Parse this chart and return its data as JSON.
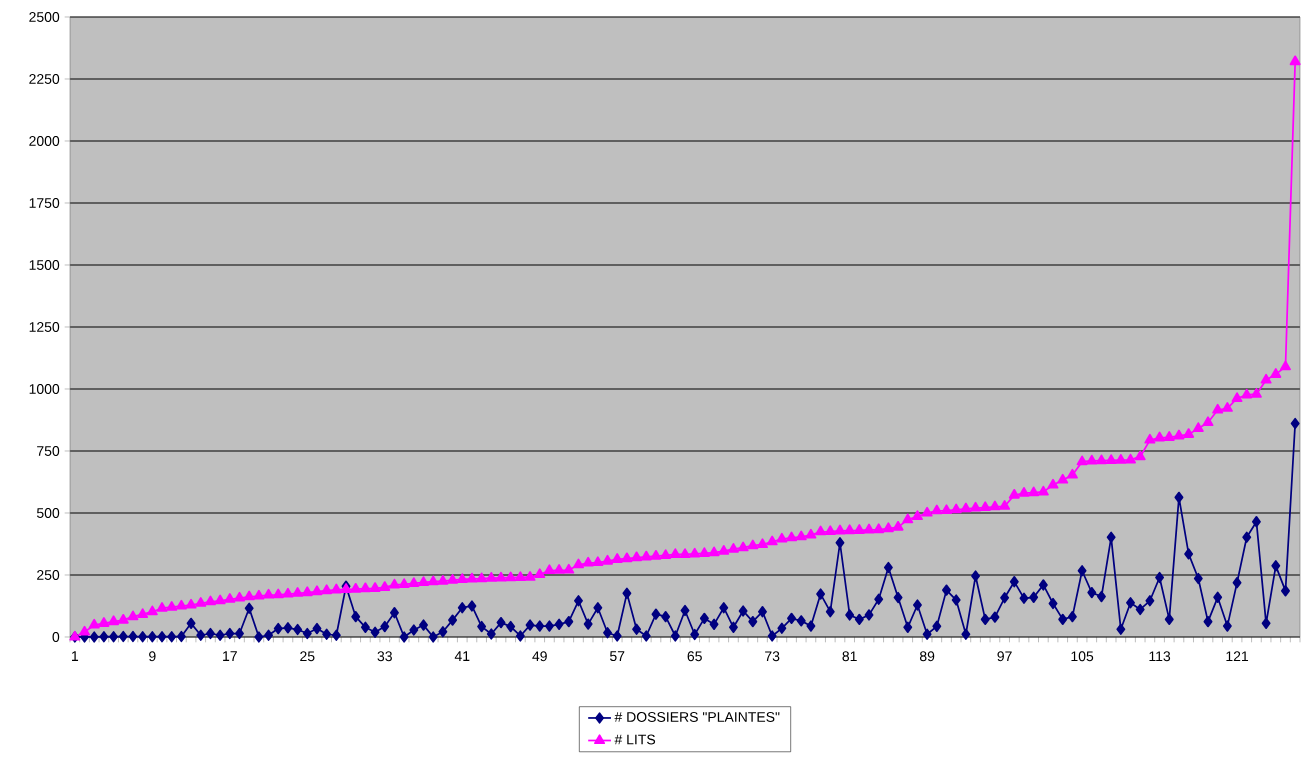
{
  "chart_data": {
    "type": "line",
    "categories": [
      "1",
      null,
      null,
      null,
      null,
      null,
      null,
      null,
      "9",
      null,
      null,
      null,
      null,
      null,
      null,
      null,
      "17",
      null,
      null,
      null,
      null,
      null,
      null,
      null,
      "25",
      null,
      null,
      null,
      null,
      null,
      null,
      null,
      "33",
      null,
      null,
      null,
      null,
      null,
      null,
      null,
      "41",
      null,
      null,
      null,
      null,
      null,
      null,
      null,
      "49",
      null,
      null,
      null,
      null,
      null,
      null,
      null,
      "57",
      null,
      null,
      null,
      null,
      null,
      null,
      null,
      "65",
      null,
      null,
      null,
      null,
      null,
      null,
      null,
      "73",
      null,
      null,
      null,
      null,
      null,
      null,
      null,
      "81",
      null,
      null,
      null,
      null,
      null,
      null,
      null,
      "89",
      null,
      null,
      null,
      null,
      null,
      null,
      null,
      "97",
      null,
      null,
      null,
      null,
      null,
      null,
      null,
      "105",
      null,
      null,
      null,
      null,
      null,
      null,
      null,
      "113",
      null,
      null,
      null,
      null,
      null,
      null,
      null,
      "121",
      null,
      null,
      null,
      null,
      null,
      null
    ],
    "series": [
      {
        "name": "# DOSSIERS \"PLAINTES\"",
        "color": "#000080",
        "marker": "diamond",
        "values": [
          0,
          0,
          0,
          1,
          1,
          2,
          2,
          1,
          1,
          1,
          1,
          2,
          55,
          7,
          14,
          7,
          14,
          14,
          116,
          0,
          7,
          34,
          37,
          30,
          14,
          34,
          11,
          7,
          205,
          82,
          39,
          19,
          42,
          98,
          0,
          28,
          48,
          0,
          21,
          68,
          118,
          125,
          42,
          12,
          58,
          42,
          4,
          48,
          44,
          44,
          51,
          62,
          146,
          52,
          118,
          17,
          4,
          176,
          31,
          4,
          92,
          82,
          4,
          107,
          10,
          75,
          51,
          118,
          39,
          105,
          62,
          102,
          4,
          35,
          75,
          65,
          44,
          173,
          102,
          380,
          89,
          71,
          89,
          152,
          280,
          159,
          39,
          129,
          11,
          43,
          189,
          149,
          11,
          246,
          71,
          80,
          158,
          223,
          156,
          160,
          210,
          135,
          71,
          82,
          267,
          179,
          163,
          402,
          31,
          138,
          111,
          146,
          240,
          71,
          563,
          335,
          236,
          62,
          160,
          44,
          219,
          402,
          465,
          55,
          287,
          186,
          861
        ]
      },
      {
        "name": "# LITS",
        "color": "#ff00ff",
        "marker": "triangle",
        "values": [
          0,
          20,
          48,
          55,
          62,
          68,
          82,
          91,
          102,
          116,
          120,
          125,
          129,
          136,
          142,
          146,
          152,
          157,
          162,
          165,
          169,
          170,
          173,
          176,
          179,
          183,
          187,
          190,
          192,
          193,
          195,
          196,
          200,
          210,
          212,
          216,
          220,
          223,
          225,
          229,
          232,
          234,
          235,
          237,
          238,
          239,
          240,
          241,
          252,
          268,
          269,
          270,
          291,
          298,
          300,
          306,
          313,
          316,
          320,
          323,
          326,
          329,
          333,
          333,
          335,
          337,
          340,
          346,
          354,
          360,
          368,
          373,
          384,
          395,
          400,
          404,
          411,
          424,
          425,
          428,
          429,
          430,
          432,
          433,
          437,
          443,
          473,
          486,
          500,
          509,
          510,
          513,
          517,
          520,
          522,
          525,
          527,
          572,
          580,
          582,
          585,
          613,
          633,
          653,
          707,
          710,
          711,
          712,
          713,
          714,
          727,
          794,
          803,
          805,
          811,
          817,
          841,
          865,
          915,
          922,
          962,
          976,
          979,
          1036,
          1059,
          1090,
          2320
        ]
      }
    ],
    "ylim": [
      0,
      2500
    ],
    "yticks": [
      0,
      250,
      500,
      750,
      1000,
      1250,
      1500,
      1750,
      2000,
      2250,
      2500
    ],
    "grid": "y",
    "legend": "bottom"
  }
}
